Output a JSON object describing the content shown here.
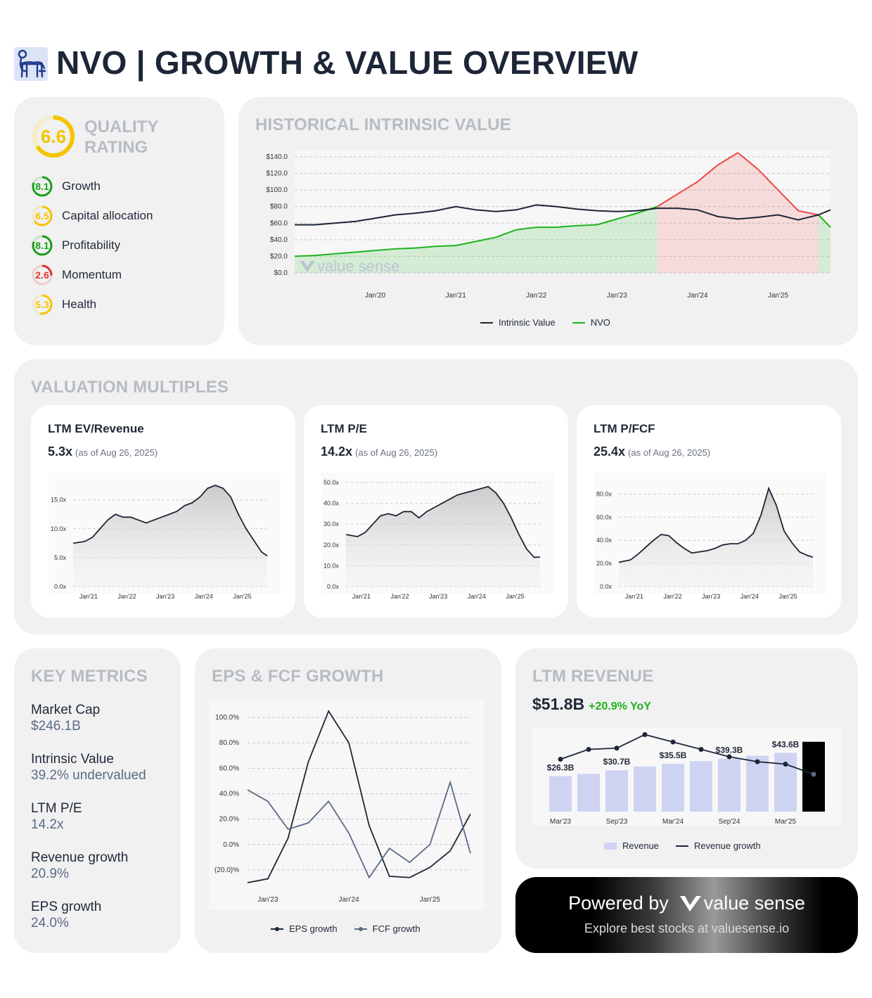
{
  "header": {
    "title": "NVO | GROWTH & VALUE OVERVIEW",
    "logo_icon": "bull-logo-icon"
  },
  "quality": {
    "title_line1": "QUALITY",
    "title_line2": "RATING",
    "score": "6.6",
    "score_value": 6.6,
    "color": "#f5c400",
    "items": [
      {
        "label": "Growth",
        "score": "8.1",
        "value": 8.1,
        "color": "#1a9e1a"
      },
      {
        "label": "Capital allocation",
        "score": "6.5",
        "value": 6.5,
        "color": "#f5c400"
      },
      {
        "label": "Profitability",
        "score": "8.1",
        "value": 8.1,
        "color": "#1a9e1a"
      },
      {
        "label": "Momentum",
        "score": "2.6",
        "value": 2.6,
        "color": "#e03030"
      },
      {
        "label": "Health",
        "score": "5.3",
        "value": 5.3,
        "color": "#f5c400"
      }
    ]
  },
  "historical": {
    "title": "HISTORICAL INTRINSIC VALUE",
    "watermark": "value sense",
    "legend": {
      "intrinsic": "Intrinsic Value",
      "price": "NVO"
    }
  },
  "valuation": {
    "title": "VALUATION MULTIPLES",
    "cards": [
      {
        "title": "LTM EV/Revenue",
        "value": "5.3x",
        "asof": "(as of Aug 26, 2025)"
      },
      {
        "title": "LTM P/E",
        "value": "14.2x",
        "asof": "(as of Aug 26, 2025)"
      },
      {
        "title": "LTM P/FCF",
        "value": "25.4x",
        "asof": "(as of Aug 26, 2025)"
      }
    ]
  },
  "key_metrics": {
    "title": "KEY METRICS",
    "items": [
      {
        "label": "Market Cap",
        "value": "$246.1B"
      },
      {
        "label": "Intrinsic Value",
        "value": "39.2% undervalued"
      },
      {
        "label": "LTM P/E",
        "value": "14.2x"
      },
      {
        "label": "Revenue growth",
        "value": "20.9%"
      },
      {
        "label": "EPS growth",
        "value": "24.0%"
      }
    ]
  },
  "eps_fcf": {
    "title": "EPS & FCF GROWTH",
    "legend": {
      "eps": "EPS growth",
      "fcf": "FCF growth"
    }
  },
  "ltm_revenue": {
    "title": "LTM REVENUE",
    "value": "$51.8B",
    "change": "+20.9% YoY",
    "legend": {
      "revenue": "Revenue",
      "growth": "Revenue growth"
    }
  },
  "powered": {
    "text": "Powered by",
    "brand": "value sense",
    "sub": "Explore best stocks at valuesense.io"
  },
  "colors": {
    "dark": "#1c2637",
    "green": "#1db31d",
    "red": "#f04848",
    "bar": "#cfd3f2",
    "slate": "#5b6b85"
  },
  "chart_data": [
    {
      "id": "historical_intrinsic_value",
      "type": "line",
      "x": [
        2019.0,
        2019.25,
        2019.5,
        2019.75,
        2020.0,
        2020.25,
        2020.5,
        2020.75,
        2021.0,
        2021.25,
        2021.5,
        2021.75,
        2022.0,
        2022.25,
        2022.5,
        2022.75,
        2023.0,
        2023.25,
        2023.5,
        2023.75,
        2024.0,
        2024.25,
        2024.5,
        2024.75,
        2025.0,
        2025.25,
        2025.5,
        2025.65
      ],
      "series": [
        {
          "name": "Intrinsic Value",
          "color": "#1c2637",
          "values": [
            58,
            58,
            60,
            62,
            66,
            70,
            72,
            75,
            80,
            76,
            74,
            76,
            82,
            80,
            77,
            75,
            74,
            75,
            78,
            78,
            76,
            68,
            65,
            67,
            70,
            64,
            70,
            76
          ]
        },
        {
          "name": "NVO",
          "color": "#1db31d",
          "values": [
            20,
            21,
            23,
            25,
            27,
            29,
            30,
            32,
            33,
            38,
            43,
            52,
            55,
            55,
            57,
            58,
            65,
            72,
            80,
            95,
            110,
            130,
            145,
            125,
            100,
            75,
            70,
            55
          ]
        }
      ],
      "xtick_labels": [
        "Jan'20",
        "Jan'21",
        "Jan'22",
        "Jan'23",
        "Jan'24",
        "Jan'25"
      ],
      "xtick_values": [
        2020,
        2021,
        2022,
        2023,
        2024,
        2025
      ],
      "ytick_labels": [
        "$0.0",
        "$20.0",
        "$40.0",
        "$60.0",
        "$80.0",
        "$100.0",
        "$120.0",
        "$140.0"
      ],
      "ylim": [
        0,
        140
      ],
      "xlim": [
        2019.0,
        2025.65
      ],
      "grid": true,
      "legend": "bottom"
    },
    {
      "id": "ev_revenue",
      "type": "area",
      "x": [
        2020.6,
        2020.9,
        2021.1,
        2021.3,
        2021.5,
        2021.7,
        2021.9,
        2022.1,
        2022.3,
        2022.5,
        2022.7,
        2022.9,
        2023.1,
        2023.3,
        2023.5,
        2023.7,
        2023.9,
        2024.1,
        2024.3,
        2024.5,
        2024.7,
        2024.9,
        2025.1,
        2025.3,
        2025.5,
        2025.65
      ],
      "values": [
        7.5,
        7.8,
        8.5,
        10.0,
        11.5,
        12.5,
        12.0,
        12.0,
        11.5,
        11.0,
        11.5,
        12.0,
        12.5,
        13.0,
        14.0,
        14.5,
        15.5,
        17.0,
        17.5,
        17.0,
        15.5,
        12.5,
        10.0,
        8.0,
        6.0,
        5.3
      ],
      "xtick_labels": [
        "Jan'21",
        "Jan'22",
        "Jan'23",
        "Jan'24",
        "Jan'25"
      ],
      "xtick_values": [
        2021,
        2022,
        2023,
        2024,
        2025
      ],
      "ytick_labels": [
        "0.0x",
        "5.0x",
        "10.0x",
        "15.0x"
      ],
      "ytick_values": [
        0,
        5,
        10,
        15
      ],
      "ylim": [
        0,
        18
      ],
      "xlim": [
        2020.6,
        2025.65
      ],
      "grid": true
    },
    {
      "id": "pe",
      "type": "area",
      "x": [
        2020.6,
        2020.9,
        2021.1,
        2021.3,
        2021.5,
        2021.7,
        2021.9,
        2022.1,
        2022.3,
        2022.5,
        2022.7,
        2022.9,
        2023.1,
        2023.3,
        2023.5,
        2023.7,
        2023.9,
        2024.1,
        2024.3,
        2024.5,
        2024.7,
        2024.9,
        2025.1,
        2025.3,
        2025.5,
        2025.65
      ],
      "values": [
        25,
        24,
        26,
        30,
        34,
        35,
        34,
        36,
        36,
        33,
        36,
        38,
        40,
        42,
        44,
        45,
        46,
        47,
        48,
        45,
        40,
        33,
        25,
        18,
        14,
        14.2
      ],
      "xtick_labels": [
        "Jan'21",
        "Jan'22",
        "Jan'23",
        "Jan'24",
        "Jan'25"
      ],
      "xtick_values": [
        2021,
        2022,
        2023,
        2024,
        2025
      ],
      "ytick_labels": [
        "0.0x",
        "10.0x",
        "20.0x",
        "30.0x",
        "40.0x",
        "50.0x"
      ],
      "ytick_values": [
        0,
        10,
        20,
        30,
        40,
        50
      ],
      "ylim": [
        0,
        50
      ],
      "xlim": [
        2020.6,
        2025.65
      ],
      "grid": true
    },
    {
      "id": "p_fcf",
      "type": "area",
      "x": [
        2020.6,
        2020.9,
        2021.1,
        2021.3,
        2021.5,
        2021.7,
        2021.9,
        2022.1,
        2022.3,
        2022.5,
        2022.7,
        2022.9,
        2023.1,
        2023.3,
        2023.5,
        2023.7,
        2023.9,
        2024.1,
        2024.3,
        2024.5,
        2024.7,
        2024.9,
        2025.1,
        2025.3,
        2025.5,
        2025.65
      ],
      "values": [
        21,
        23,
        28,
        34,
        40,
        45,
        44,
        38,
        33,
        29,
        30,
        31,
        33,
        36,
        37,
        37,
        40,
        46,
        62,
        85,
        70,
        48,
        38,
        30,
        27,
        25.4
      ],
      "xtick_labels": [
        "Jan'21",
        "Jan'22",
        "Jan'23",
        "Jan'24",
        "Jan'25"
      ],
      "xtick_values": [
        2021,
        2022,
        2023,
        2024,
        2025
      ],
      "ytick_labels": [
        "0.0x",
        "20.0x",
        "40.0x",
        "60.0x",
        "80.0x"
      ],
      "ytick_values": [
        0,
        20,
        40,
        60,
        80
      ],
      "ylim": [
        0,
        90
      ],
      "xlim": [
        2020.6,
        2025.65
      ],
      "grid": true
    },
    {
      "id": "eps_fcf_growth",
      "type": "line",
      "x": [
        2022.75,
        2023.0,
        2023.25,
        2023.5,
        2023.75,
        2024.0,
        2024.25,
        2024.5,
        2024.75,
        2025.0,
        2025.25,
        2025.5
      ],
      "series": [
        {
          "name": "EPS growth",
          "color": "#1c2637",
          "values": [
            -30,
            -27,
            5,
            65,
            105,
            80,
            15,
            -25,
            -26,
            -18,
            -5,
            24
          ]
        },
        {
          "name": "FCF growth",
          "color": "#5b6b85",
          "values": [
            43,
            34,
            12,
            17,
            34,
            9,
            -26,
            -3,
            -14,
            0,
            49,
            -7
          ]
        }
      ],
      "xtick_labels": [
        "Jan'23",
        "Jan'24",
        "Jan'25"
      ],
      "xtick_values": [
        2023,
        2024,
        2025
      ],
      "ytick_labels": [
        "(20.0)%",
        "0.0%",
        "20.0%",
        "40.0%",
        "60.0%",
        "80.0%",
        "100.0%"
      ],
      "ytick_values": [
        -20,
        0,
        20,
        40,
        60,
        80,
        100
      ],
      "ylim": [
        -35,
        110
      ],
      "xlim": [
        2022.75,
        2025.5
      ],
      "grid": true,
      "legend": "bottom"
    },
    {
      "id": "ltm_revenue",
      "type": "bar",
      "categories": [
        "Mar'23",
        "Jun'23",
        "Sep'23",
        "Dec'23",
        "Mar'24",
        "Jun'24",
        "Sep'24",
        "Dec'24",
        "Mar'25",
        "Jun'25"
      ],
      "xtick_labels": [
        "Mar'23",
        "",
        "Sep'23",
        "",
        "Mar'24",
        "",
        "Sep'24",
        "",
        "Mar'25",
        ""
      ],
      "series": [
        {
          "name": "Revenue",
          "color": "#cfd3f2",
          "values": [
            26.3,
            28.0,
            30.7,
            33.5,
            35.5,
            37.5,
            39.3,
            41.5,
            43.6,
            51.8
          ]
        },
        {
          "name": "Revenue growth",
          "color": "#1c2637",
          "values": [
            27,
            31,
            31.5,
            37,
            34,
            31,
            28,
            26,
            25,
            20.9
          ]
        }
      ],
      "value_labels": [
        "$26.3B",
        "",
        "$30.7B",
        "",
        "$35.5B",
        "",
        "$39.3B",
        "",
        "$43.6B",
        ""
      ],
      "highlight_last": "#000000",
      "ylim": [
        0,
        60
      ],
      "growth_ylim": [
        0,
        40
      ],
      "legend": "bottom"
    }
  ]
}
